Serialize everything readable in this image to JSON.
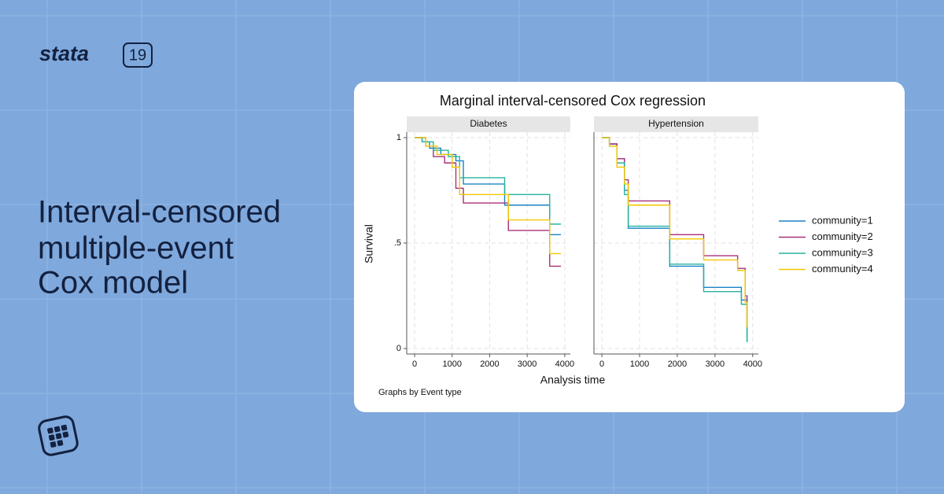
{
  "brand": {
    "name": "stata",
    "version": "19"
  },
  "headline": [
    "Interval-censored",
    "multiple-event",
    "Cox model"
  ],
  "figure": {
    "title": "Marginal interval-censored Cox regression",
    "xlabel": "Analysis time",
    "ylabel": "Survival",
    "note": "Graphs by Event type"
  },
  "chart_data": [
    {
      "type": "step",
      "title": "Diabetes",
      "grid": true,
      "xlim": [
        -210,
        4150
      ],
      "ylim": [
        -0.026,
        1.026
      ],
      "xticks": [
        0,
        1000,
        2000,
        3000,
        4000
      ],
      "yticks": [
        0,
        {
          "value": 0.5,
          "label": ".5"
        },
        1
      ],
      "series": [
        {
          "name": "community=1",
          "color": "#1b83c6",
          "x": [
            0,
            200,
            400,
            700,
            1100,
            1300,
            2400,
            3600,
            3900
          ],
          "values": [
            1,
            0.98,
            0.95,
            0.92,
            0.89,
            0.78,
            0.68,
            0.54,
            0.54
          ]
        },
        {
          "name": "community=2",
          "color": "#a8307a",
          "x": [
            0,
            300,
            500,
            800,
            1100,
            1300,
            2500,
            3600,
            3900
          ],
          "values": [
            1,
            0.96,
            0.91,
            0.88,
            0.76,
            0.69,
            0.56,
            0.39,
            0.39
          ]
        },
        {
          "name": "community=3",
          "color": "#26b39f",
          "x": [
            0,
            200,
            500,
            900,
            1200,
            2400,
            3600,
            3900
          ],
          "values": [
            1,
            0.98,
            0.94,
            0.91,
            0.81,
            0.73,
            0.59,
            0.59
          ]
        },
        {
          "name": "community=4",
          "color": "#f2c800",
          "x": [
            0,
            300,
            600,
            1000,
            1200,
            2500,
            3600,
            3900
          ],
          "values": [
            1,
            0.96,
            0.92,
            0.86,
            0.73,
            0.61,
            0.45,
            0.45
          ]
        }
      ]
    },
    {
      "type": "step",
      "title": "Hypertension",
      "grid": true,
      "xlim": [
        -210,
        4150
      ],
      "ylim": [
        -0.026,
        1.026
      ],
      "xticks": [
        0,
        1000,
        2000,
        3000,
        4000
      ],
      "series": [
        {
          "name": "community=1",
          "color": "#1b83c6",
          "x": [
            0,
            200,
            400,
            600,
            700,
            1800,
            2700,
            3700,
            3850
          ],
          "values": [
            1,
            0.97,
            0.9,
            0.75,
            0.57,
            0.39,
            0.29,
            0.23,
            0.03
          ]
        },
        {
          "name": "community=2",
          "color": "#a8307a",
          "x": [
            0,
            200,
            400,
            600,
            700,
            1800,
            2700,
            3600,
            3800,
            3850
          ],
          "values": [
            1,
            0.97,
            0.9,
            0.8,
            0.7,
            0.54,
            0.44,
            0.38,
            0.25,
            0.1
          ]
        },
        {
          "name": "community=3",
          "color": "#26b39f",
          "x": [
            0,
            200,
            400,
            600,
            700,
            1800,
            2700,
            3700,
            3850
          ],
          "values": [
            1,
            0.96,
            0.88,
            0.73,
            0.58,
            0.4,
            0.27,
            0.21,
            0.03
          ]
        },
        {
          "name": "community=4",
          "color": "#f2c800",
          "x": [
            0,
            200,
            400,
            600,
            700,
            1800,
            2700,
            3600,
            3800,
            3850
          ],
          "values": [
            1,
            0.96,
            0.86,
            0.78,
            0.68,
            0.52,
            0.42,
            0.37,
            0.22,
            0.1
          ]
        }
      ]
    }
  ]
}
